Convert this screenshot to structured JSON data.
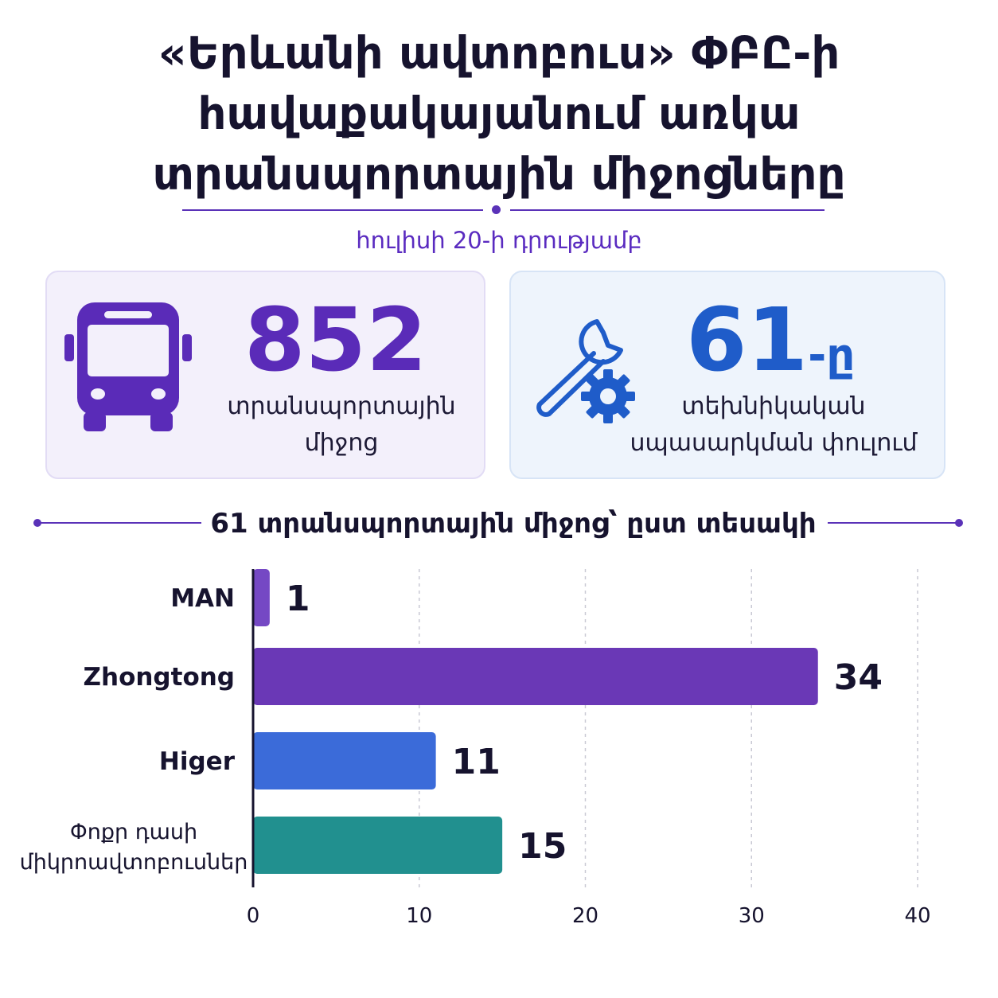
{
  "title_lines": [
    "«Երևանի ավտոբուս» ՓԲԸ-ի",
    "հավաքակայանում առկա",
    "տրանսպորտային միջոցները"
  ],
  "subtitle": "հուլիսի 20-ի դրությամբ",
  "stats": {
    "total": {
      "value": "852",
      "label_lines": [
        "տրանսպորտային",
        "միջոց"
      ],
      "icon": "bus-icon",
      "color": "#5a2bb8"
    },
    "repair": {
      "value": "61",
      "suffix": "-ը",
      "label_lines": [
        "տեխնիկական",
        "սպասարկման փուլում"
      ],
      "icon": "wrench-gear-icon",
      "color": "#1f5cc9"
    }
  },
  "section_title": "61 տրանսպորտային միջոց՝ ըստ տեսակի",
  "chart_data": {
    "type": "bar",
    "orientation": "horizontal",
    "categories": [
      "MAN",
      "Zhongtong",
      "Higer",
      "Փոքր դասի միկրոավտոբուսներ"
    ],
    "category_lines": [
      [
        "MAN"
      ],
      [
        "Zhongtong"
      ],
      [
        "Higer"
      ],
      [
        "Փոքր դասի",
        "միկրոավտոբուսներ"
      ]
    ],
    "values": [
      1,
      34,
      11,
      15
    ],
    "colors": [
      "#7548c4",
      "#6a38b6",
      "#3b6bd9",
      "#21908f"
    ],
    "xlim": [
      0,
      40
    ],
    "xticks": [
      0,
      10,
      20,
      30,
      40
    ],
    "grid": true,
    "title": "61 տրանսպորտային միջոց՝ ըստ տեսակի"
  }
}
